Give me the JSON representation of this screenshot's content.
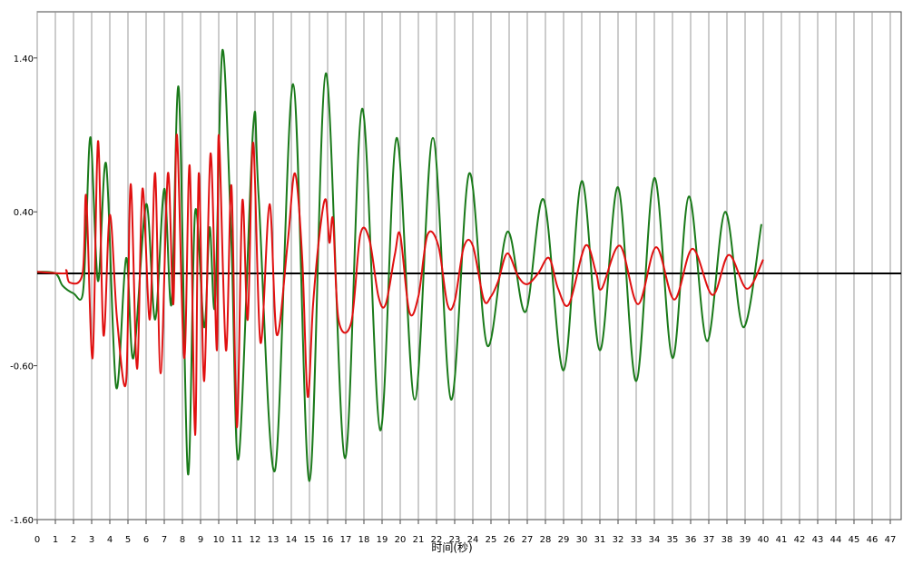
{
  "chart_data": {
    "type": "line",
    "x_label": "时间(秒)",
    "xlim": [
      0,
      47.6
    ],
    "ylim": [
      -1.6,
      1.7
    ],
    "xticks": [
      0,
      1,
      2,
      3,
      4,
      5,
      6,
      7,
      8,
      9,
      10,
      11,
      12,
      13,
      14,
      15,
      16,
      17,
      18,
      19,
      20,
      21,
      22,
      23,
      24,
      25,
      26,
      27,
      28,
      29,
      30,
      31,
      32,
      33,
      34,
      35,
      36,
      37,
      38,
      39,
      40,
      41,
      42,
      43,
      44,
      45,
      46,
      47
    ],
    "yticks": [
      {
        "value": -1.6,
        "label": "-1.60"
      },
      {
        "value": -0.6,
        "label": "-0.60"
      },
      {
        "value": 0.4,
        "label": "0.40"
      },
      {
        "value": 1.4,
        "label": "1.40"
      }
    ],
    "vertical_grid": true,
    "baseline": 0,
    "baseline_color": "#000000",
    "series": [
      {
        "color": "#1a7a1a",
        "x": [
          0,
          1,
          1.4,
          2,
          2.5,
          2.7,
          2.95,
          3.35,
          3.8,
          4.35,
          4.9,
          5.3,
          6.0,
          6.5,
          7.0,
          7.4,
          7.8,
          8.3,
          8.7,
          9.2,
          9.5,
          9.8,
          10.2,
          10.7,
          11.1,
          11.9,
          12.2,
          13.1,
          14.1,
          15.0,
          15.9,
          16.95,
          17.9,
          18.9,
          19.8,
          20.8,
          21.8,
          22.8,
          23.8,
          24.8,
          25.9,
          26.9,
          27.9,
          29.0,
          30.0,
          31.0,
          32.0,
          33.0,
          34.0,
          35.0,
          35.9,
          36.9,
          37.9,
          38.9,
          39.9
        ],
        "values": [
          0.01,
          0.0,
          -0.08,
          -0.13,
          -0.14,
          0.3,
          0.88,
          -0.05,
          0.71,
          -0.74,
          0.1,
          -0.55,
          0.45,
          -0.3,
          0.55,
          -0.2,
          1.2,
          -1.3,
          0.4,
          -0.35,
          0.3,
          -0.2,
          1.45,
          0.2,
          -1.2,
          0.95,
          0.5,
          -1.28,
          1.23,
          -1.35,
          1.3,
          -1.2,
          1.07,
          -1.02,
          0.88,
          -0.82,
          0.88,
          -0.82,
          0.65,
          -0.47,
          0.27,
          -0.25,
          0.48,
          -0.63,
          0.6,
          -0.5,
          0.56,
          -0.7,
          0.62,
          -0.55,
          0.5,
          -0.44,
          0.4,
          -0.35,
          0.32
        ]
      },
      {
        "color": "#e01010",
        "x": [
          0,
          1.5,
          1.6,
          1.8,
          2.5,
          2.7,
          3.05,
          3.35,
          3.65,
          4.0,
          4.4,
          4.9,
          5.15,
          5.5,
          5.8,
          6.2,
          6.5,
          6.8,
          7.2,
          7.5,
          7.7,
          8.1,
          8.4,
          8.7,
          8.9,
          9.2,
          9.55,
          9.9,
          10.0,
          10.4,
          10.7,
          11.0,
          11.3,
          11.6,
          11.9,
          12.3,
          12.8,
          13.2,
          13.8,
          14.2,
          14.6,
          14.9,
          15.2,
          15.6,
          15.9,
          16.1,
          16.3,
          16.6,
          17.3,
          17.8,
          18.3,
          18.8,
          19.2,
          19.7,
          20.0,
          20.5,
          21.0,
          21.5,
          22.1,
          22.6,
          23.0,
          23.5,
          24.0,
          24.6,
          25.0,
          25.4,
          25.9,
          26.5,
          27.0,
          27.6,
          28.2,
          28.7,
          29.3,
          30.2,
          30.8,
          31.1,
          32.1,
          33.1,
          34.1,
          35.1,
          36.1,
          37.2,
          38.1,
          39.1,
          40.0
        ],
        "values": [
          0.01,
          0.0,
          0.02,
          -0.06,
          0.0,
          0.5,
          -0.55,
          0.86,
          -0.4,
          0.38,
          -0.3,
          -0.7,
          0.58,
          -0.62,
          0.55,
          -0.3,
          0.65,
          -0.65,
          0.65,
          -0.2,
          0.9,
          -0.55,
          0.7,
          -1.05,
          0.65,
          -0.7,
          0.78,
          -0.5,
          0.9,
          -0.5,
          0.57,
          -1.0,
          0.47,
          -0.3,
          0.85,
          -0.45,
          0.45,
          -0.4,
          0.2,
          0.65,
          0.1,
          -0.8,
          -0.2,
          0.3,
          0.48,
          0.2,
          0.35,
          -0.3,
          -0.32,
          0.25,
          0.22,
          -0.15,
          -0.2,
          0.12,
          0.25,
          -0.25,
          -0.15,
          0.25,
          0.18,
          -0.2,
          -0.18,
          0.17,
          0.18,
          -0.17,
          -0.15,
          -0.05,
          0.13,
          -0.02,
          -0.07,
          0.0,
          0.1,
          -0.1,
          -0.2,
          0.18,
          0.0,
          -0.1,
          0.18,
          -0.2,
          0.17,
          -0.17,
          0.16,
          -0.14,
          0.12,
          -0.1,
          0.09
        ]
      }
    ]
  }
}
